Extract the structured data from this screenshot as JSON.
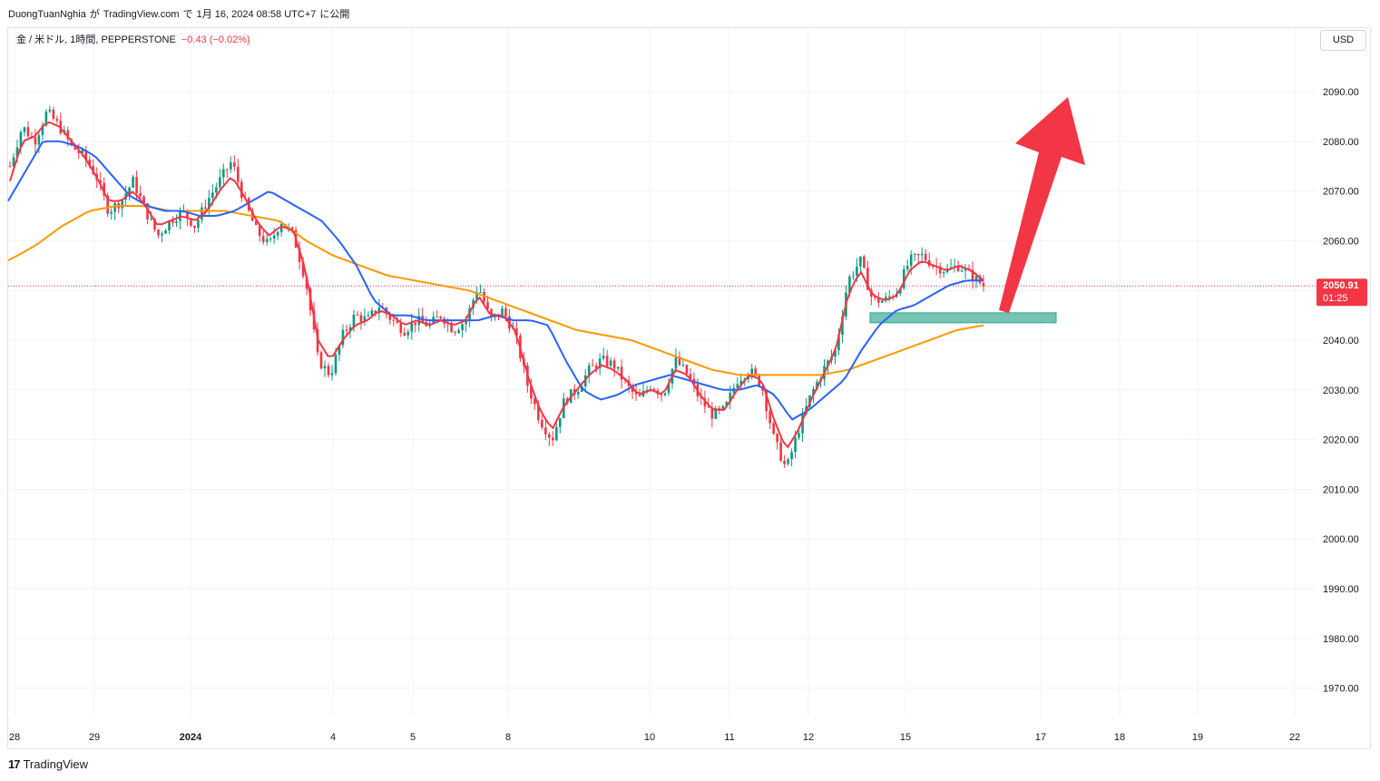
{
  "header": {
    "author": "DuongTuanNghia",
    "particle1": "が",
    "site": "TradingView.com",
    "particle2": "で",
    "date": "1月 16, 2024 08:58 UTC+7",
    "published": "に公開"
  },
  "legend": {
    "symbol": "金 / 米ドル, 1時間, PEPPERSTONE",
    "change": "−0.43 (−0.02%)"
  },
  "currency": "USD",
  "brand": "TradingView",
  "colors": {
    "up": "#089981",
    "down": "#f23645",
    "ema_fast": "#f23645",
    "ema_mid": "#2962ff",
    "ema_slow": "#ff9800",
    "zone": "#5fb7a4",
    "arrow": "#f23645",
    "grid": "#f0f3fa"
  },
  "chart_data": {
    "type": "candlestick",
    "title": "金 / 米ドル, 1時間, PEPPERSTONE",
    "ylim": [
      1962,
      2100
    ],
    "y_ticks": [
      "2090.00",
      "2080.00",
      "2070.00",
      "2060.00",
      "2050.00",
      "2040.00",
      "2030.00",
      "2020.00",
      "2010.00",
      "2000.00",
      "1990.00",
      "1980.00",
      "1970.00"
    ],
    "x_ticks": [
      "28",
      "29",
      "2024",
      "4",
      "5",
      "8",
      "10",
      "11",
      "12",
      "15",
      "17",
      "18",
      "19",
      "22"
    ],
    "last_price": "2050.91",
    "countdown": "01:25",
    "close_path": [
      2075,
      2083,
      2080,
      2086,
      2083,
      2079,
      2077,
      2073,
      2066,
      2068,
      2072,
      2066,
      2061,
      2064,
      2066,
      2063,
      2068,
      2072,
      2076,
      2068,
      2062,
      2059,
      2064,
      2061,
      2052,
      2036,
      2033,
      2041,
      2045,
      2044,
      2047,
      2044,
      2042,
      2044,
      2043,
      2045,
      2042,
      2044,
      2051,
      2044,
      2046,
      2041,
      2031,
      2024,
      2020,
      2028,
      2030,
      2034,
      2036,
      2035,
      2031,
      2028,
      2031,
      2029,
      2036,
      2033,
      2028,
      2025,
      2026,
      2032,
      2034,
      2031,
      2020,
      2014,
      2022,
      2029,
      2034,
      2038,
      2052,
      2056,
      2048,
      2048,
      2050,
      2056,
      2057,
      2055,
      2054,
      2055,
      2053,
      2051
    ],
    "ema_fast": [
      2072,
      2080,
      2081,
      2084,
      2083,
      2080,
      2077,
      2073,
      2068,
      2068,
      2070,
      2067,
      2063,
      2064,
      2065,
      2064,
      2066,
      2070,
      2073,
      2069,
      2064,
      2061,
      2063,
      2062,
      2054,
      2040,
      2036,
      2040,
      2043,
      2044,
      2046,
      2045,
      2043,
      2044,
      2043,
      2044,
      2043,
      2044,
      2049,
      2045,
      2045,
      2042,
      2033,
      2026,
      2022,
      2027,
      2030,
      2033,
      2035,
      2034,
      2032,
      2029,
      2030,
      2029,
      2034,
      2033,
      2029,
      2026,
      2026,
      2030,
      2033,
      2032,
      2024,
      2018,
      2022,
      2028,
      2033,
      2038,
      2049,
      2054,
      2049,
      2048,
      2049,
      2054,
      2056,
      2055,
      2054,
      2055,
      2054,
      2052
    ],
    "ema_mid": [
      2068,
      2074,
      2080,
      2080,
      2079,
      2077,
      2073,
      2069,
      2067,
      2066,
      2066,
      2065,
      2065,
      2066,
      2068,
      2070,
      2068,
      2066,
      2064,
      2060,
      2055,
      2048,
      2045,
      2045,
      2044,
      2044,
      2044,
      2044,
      2045,
      2044,
      2044,
      2043,
      2036,
      2030,
      2028,
      2029,
      2031,
      2032,
      2033,
      2032,
      2031,
      2030,
      2030,
      2031,
      2029,
      2024,
      2026,
      2029,
      2032,
      2038,
      2043,
      2046,
      2047,
      2049,
      2051,
      2052,
      2052
    ],
    "ema_slow": [
      2056,
      2059,
      2063,
      2066,
      2067,
      2067,
      2066,
      2066,
      2066,
      2065,
      2064,
      2060,
      2057,
      2055,
      2053,
      2052,
      2051,
      2050,
      2048,
      2046,
      2044,
      2042,
      2041,
      2040,
      2038,
      2036,
      2034,
      2033,
      2033,
      2033,
      2033,
      2034,
      2036,
      2038,
      2040,
      2042,
      2043
    ],
    "zone": {
      "from": 2043.5,
      "to": 2045.5
    },
    "annotations": [
      "up-arrow"
    ]
  }
}
